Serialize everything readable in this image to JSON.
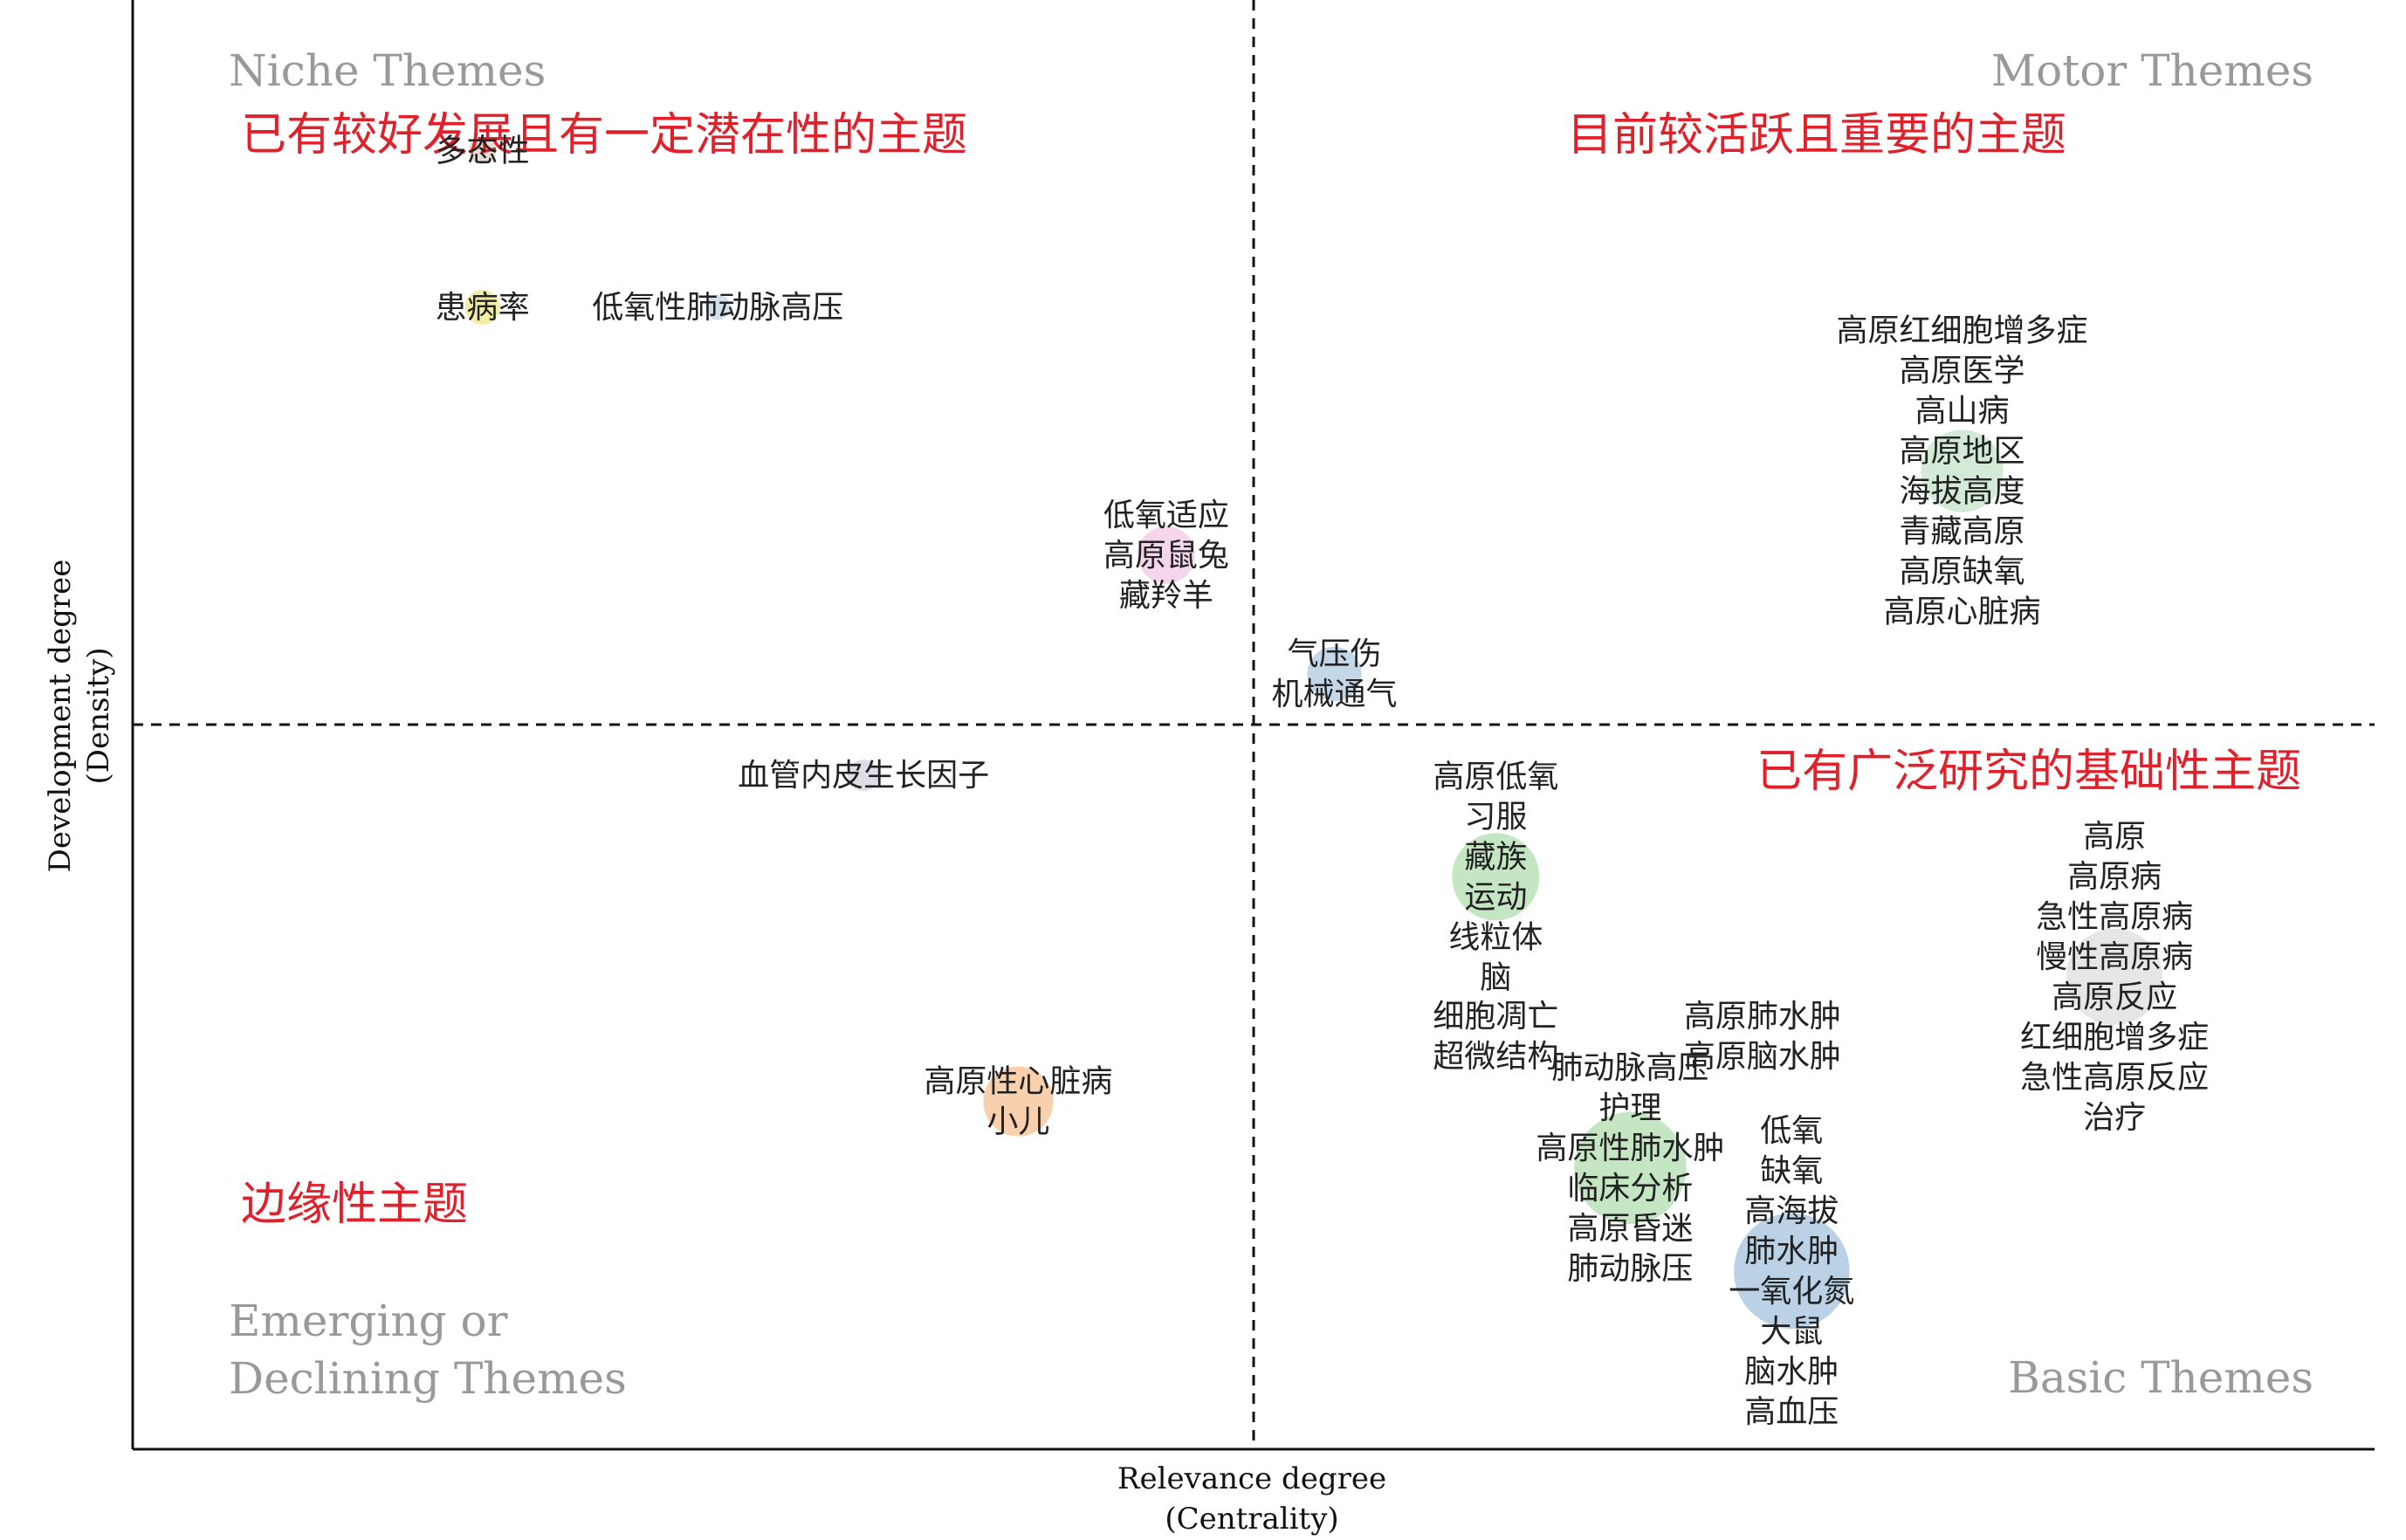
{
  "chart_data": {
    "type": "scatter",
    "title": "",
    "xlabel": "Relevance degree",
    "xlabel_sub": "(Centrality)",
    "ylabel": "Development degree",
    "ylabel_sub": "(Density)",
    "xlim": [
      0,
      100
    ],
    "ylim": [
      0,
      100
    ],
    "x_divider": 50,
    "y_divider": 50,
    "grid": false,
    "quadrants": [
      {
        "key": "niche",
        "name": "Niche Themes",
        "name_lines": [
          "Niche Themes"
        ],
        "description": "已有较好发展且有一定潜在性的主题",
        "position": "top-left"
      },
      {
        "key": "motor",
        "name": "Motor Themes",
        "name_lines": [
          "Motor Themes"
        ],
        "description": "目前较活跃且重要的主题",
        "position": "top-right"
      },
      {
        "key": "emerging",
        "name": "Emerging or Declining Themes",
        "name_lines": [
          "Emerging or",
          "Declining Themes"
        ],
        "description": "边缘性主题",
        "position": "bottom-left"
      },
      {
        "key": "basic",
        "name": "Basic Themes",
        "name_lines": [
          "Basic Themes"
        ],
        "description": "已有广泛研究的基础性主题",
        "position": "bottom-right"
      }
    ],
    "clusters": [
      {
        "id": "c1",
        "x": 15.6,
        "y": 89.6,
        "size": 0.2,
        "color": "#e8d9d0",
        "keywords": [
          "多态性"
        ]
      },
      {
        "id": "c2",
        "x": 15.6,
        "y": 78.8,
        "size": 0.4,
        "color": "#f2ec9a",
        "keywords": [
          "患病率"
        ]
      },
      {
        "id": "c3",
        "x": 26.1,
        "y": 78.8,
        "size": 0.15,
        "color": "#cfdcec",
        "keywords": [
          "低氧性肺动脉高压"
        ]
      },
      {
        "id": "c4",
        "x": 46.1,
        "y": 61.7,
        "size": 1.5,
        "color": "#f3d0ea",
        "keywords": [
          "低氧适应",
          "高原鼠兔",
          "藏羚羊"
        ]
      },
      {
        "id": "c5",
        "x": 53.6,
        "y": 53.5,
        "size": 1.3,
        "color": "#bdd3e6",
        "keywords": [
          "气压伤",
          "机械通气"
        ]
      },
      {
        "id": "c6",
        "x": 81.6,
        "y": 67.5,
        "size": 3.5,
        "color": "#cde8d2",
        "keywords": [
          "高原红细胞增多症",
          "高原医学",
          "高山病",
          "高原地区",
          "海拔高度",
          "青藏高原",
          "高原缺氧",
          "高原心脏病"
        ]
      },
      {
        "id": "c7",
        "x": 32.6,
        "y": 46.5,
        "size": 0.3,
        "color": "#d8dce2",
        "keywords": [
          "血管内皮生长因子"
        ]
      },
      {
        "id": "c8",
        "x": 39.5,
        "y": 24.0,
        "size": 2.4,
        "color": "#f8cba4",
        "keywords": [
          "高原性心脏病",
          "小儿"
        ]
      },
      {
        "id": "c9",
        "x": 60.8,
        "y": 39.5,
        "size": 4.0,
        "color": "#bfe3bd",
        "keywords": [
          "高原低氧",
          "习服",
          "藏族",
          "运动",
          "线粒体",
          "脑"
        ]
      },
      {
        "id": "c10",
        "x": 88.4,
        "y": 32.6,
        "size": 5.0,
        "color": "#e3e3e3",
        "keywords": [
          "高原",
          "高原病",
          "急性高原病",
          "慢性高原病",
          "高原反应",
          "红细胞增多症",
          "急性高原反应",
          "治疗"
        ]
      },
      {
        "id": "c11",
        "x": 60.8,
        "y": 28.5,
        "size": 0,
        "color": "#ffffff",
        "keywords": [
          "细胞凋亡",
          "超微结构"
        ]
      },
      {
        "id": "c12",
        "x": 72.7,
        "y": 28.5,
        "size": 0,
        "color": "#ffffff",
        "keywords": [
          "高原肺水肿",
          "高原脑水肿"
        ]
      },
      {
        "id": "c13",
        "x": 66.8,
        "y": 19.4,
        "size": 7.0,
        "color": "#bfe3bd",
        "keywords": [
          "肺动脉高压",
          "护理",
          "高原性肺水肿",
          "临床分析",
          "高原昏迷",
          "肺动脉压"
        ]
      },
      {
        "id": "c14",
        "x": 74.0,
        "y": 12.3,
        "size": 7.5,
        "color": "#b4cde3",
        "keywords": [
          "低氧",
          "缺氧",
          "高海拔",
          "肺水肿",
          "一氧化氮",
          "大鼠",
          "脑水肿",
          "高血压"
        ]
      }
    ],
    "colors": {
      "quadrant_name": "#999999",
      "quadrant_description": "#e0202a",
      "axis": "#111111",
      "label": "#222222"
    }
  }
}
